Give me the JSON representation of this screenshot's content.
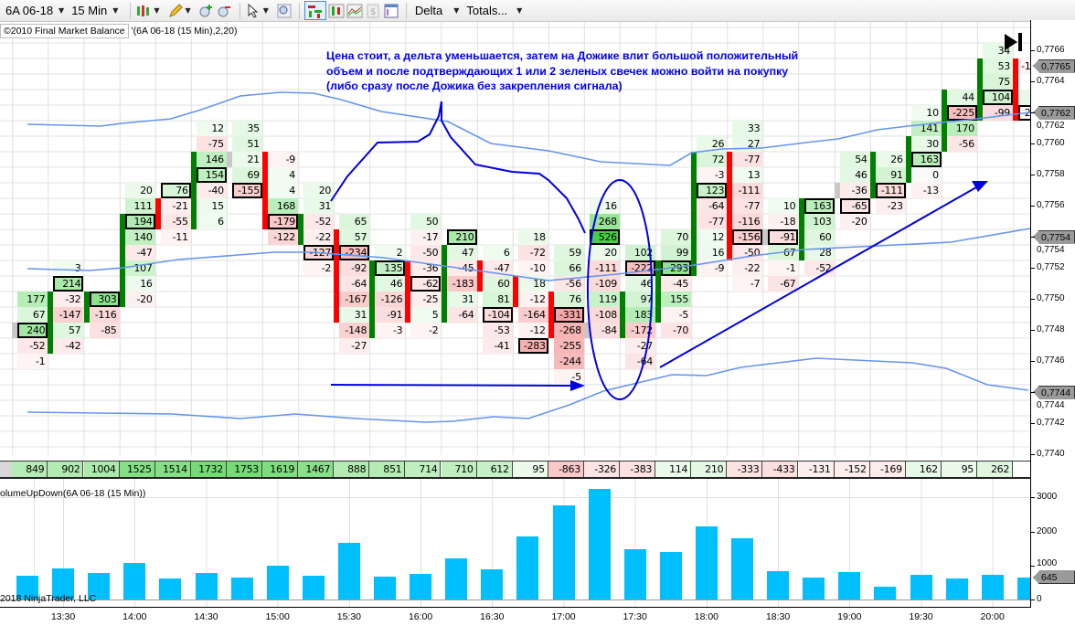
{
  "toolbar": {
    "instrument": "6A 06-18",
    "interval": "15 Min",
    "indicator_menu": "Delta",
    "totals_menu": "Totals...",
    "icons": [
      "candlestick-icon",
      "pencil-icon",
      "zoom-in-icon",
      "zoom-out-icon",
      "cursor-icon",
      "magnifier-icon",
      "footprint-style-icon",
      "bar-style-icon",
      "line-chart-icon",
      "dollar-icon",
      "properties-icon"
    ]
  },
  "indicator_title": {
    "box": "©2010 Final Market Balance",
    "args": "'(6A 06-18 (15 Min),2,20)"
  },
  "annotation": {
    "lines": [
      "Цена стоит, а дельта уменьшается, затем на Дожике влит большой положительный",
      "объем и после подтверждающих 1 или 2 зеленых свечек можно войти на покупку",
      "(либо сразу после Дожика без закрепления сигнала)"
    ],
    "color": "#0000f0"
  },
  "colors": {
    "up": "#008000",
    "down": "#ff0000",
    "doji": "#c8c8c8",
    "volume": "#00bfff",
    "bands": "#6495ed",
    "drawing": "#0000e0"
  },
  "price_axis": {
    "labels": [
      "0,7766",
      "0,7764",
      "0,7762",
      "0,7760",
      "0,7758",
      "0,7756",
      "0,7754",
      "0,7752",
      "0,7750",
      "0,7748",
      "0,7746",
      "0,7744",
      "0,7742",
      "0,7740"
    ],
    "tags": [
      "0,7765",
      "0,7762",
      "0,7754",
      "0,7744"
    ]
  },
  "chart_data": {
    "type": "footprint",
    "tick_size": 0.0001,
    "price_range": [
      0.774,
      0.7766
    ],
    "columns": [
      {
        "top": "0.7750",
        "cells": [
          177,
          67,
          240,
          -52,
          -1
        ],
        "poc": 240,
        "candle": {
          "color": "doji",
          "from": "0.7748",
          "to": "0.7748"
        }
      },
      {
        "top": "0.7752",
        "cells": [
          3,
          214,
          -32,
          -147,
          57,
          -42
        ],
        "poc": 214,
        "candle": {
          "color": "up",
          "from": "0.7750",
          "to": "0.7747"
        }
      },
      {
        "top": "0.7750",
        "cells": [
          303,
          -116,
          -85
        ],
        "poc": 303,
        "candle": {
          "color": "up",
          "from": "0.7750",
          "to": "0.7749"
        }
      },
      {
        "top": "0.7757",
        "cells": [
          20,
          111,
          194,
          140,
          -47,
          107,
          16,
          -20
        ],
        "poc": 194,
        "candle": {
          "color": "up",
          "from": "0.7755",
          "to": "0.7750"
        }
      },
      {
        "top": "0.7757",
        "cells": [
          76,
          -21,
          -55,
          -11
        ],
        "poc": 76,
        "candle": {
          "color": "down",
          "from": "0.7756",
          "to": "0.7755"
        }
      },
      {
        "top": "0.7761",
        "cells": [
          12,
          -75,
          146,
          154,
          -40,
          15,
          6
        ],
        "poc": 154,
        "candle": {
          "color": "up",
          "from": "0.7759",
          "to": "0.7755"
        }
      },
      {
        "top": "0.7761",
        "cells": [
          35,
          51,
          21,
          69,
          -155
        ],
        "poc": -155,
        "candle": {
          "color": "doji",
          "from": "0.7759",
          "to": "0.7759"
        }
      },
      {
        "top": "0.7759",
        "cells": [
          -9,
          4,
          4,
          168,
          -179,
          -122
        ],
        "poc": -179,
        "candle": {
          "color": "down",
          "from": "0.7759",
          "to": "0.7755"
        }
      },
      {
        "top": "0.7757",
        "cells": [
          20,
          31,
          -52,
          -22,
          -127,
          -2
        ],
        "poc": -127,
        "candle": {
          "color": "up",
          "from": "0.7755",
          "to": "0.7754"
        }
      },
      {
        "top": "0.7755",
        "cells": [
          65,
          57,
          -234,
          -92,
          -64,
          -167,
          31,
          -148,
          -27
        ],
        "poc": -234,
        "candle": {
          "color": "down",
          "from": "0.7754",
          "to": "0.7749"
        }
      },
      {
        "top": "0.7753",
        "cells": [
          2,
          135,
          46,
          -126,
          -91,
          -3
        ],
        "poc": 135,
        "candle": {
          "color": "up",
          "from": "0.7752",
          "to": "0.7748"
        }
      },
      {
        "top": "0.7755",
        "cells": [
          50,
          -17,
          -50,
          -36,
          -62,
          -25,
          5,
          -2
        ],
        "poc": -62,
        "candle": {
          "color": "down",
          "from": "0.7752",
          "to": "0.7749"
        }
      },
      {
        "top": "0.7754",
        "cells": [
          210,
          47,
          -45,
          -183,
          31,
          -64
        ],
        "poc": 210,
        "candle": {
          "color": "up",
          "from": "0.7753",
          "to": "0.7749"
        }
      },
      {
        "top": "0.7753",
        "cells": [
          6,
          -47,
          60,
          81,
          -104,
          -53,
          -41
        ],
        "poc": -104,
        "candle": {
          "color": "down",
          "from": "0.7752",
          "to": "0.7751"
        }
      },
      {
        "top": "0.7754",
        "cells": [
          18,
          -72,
          -10,
          18,
          -12,
          -164,
          -12,
          -283
        ],
        "poc": -283,
        "candle": {
          "color": "down",
          "from": "0.7751",
          "to": "0.7750"
        }
      },
      {
        "top": "0.7753",
        "cells": [
          59,
          66,
          -56,
          76,
          -331,
          -268,
          -255,
          -244,
          -5
        ],
        "poc": -331,
        "candle": {
          "color": "down",
          "from": "0.7750",
          "to": "0.7748"
        }
      },
      {
        "top": "0.7756",
        "cells": [
          16,
          268,
          526,
          20,
          -111,
          -109,
          119,
          -108,
          -84
        ],
        "poc": 526,
        "candle": {
          "color": "doji",
          "from": "0.7748",
          "to": "0.7748"
        }
      },
      {
        "top": "0.7753",
        "cells": [
          102,
          -222,
          46,
          97,
          183,
          -172,
          -27,
          -64
        ],
        "poc": -222,
        "candle": {
          "color": "up",
          "from": "0.7750",
          "to": "0.7748"
        }
      },
      {
        "top": "0.7754",
        "cells": [
          70,
          99,
          293,
          -45,
          155,
          -5,
          -70
        ],
        "poc": 293,
        "candle": {
          "color": "up",
          "from": "0.7752",
          "to": "0.7749"
        }
      },
      {
        "top": "0.7760",
        "cells": [
          26,
          72,
          -3,
          123,
          -64,
          -77,
          12,
          16,
          -9
        ],
        "poc": 123,
        "candle": {
          "color": "up",
          "from": "0.7759",
          "to": "0.7752"
        }
      },
      {
        "top": "0.7761",
        "cells": [
          33,
          27,
          -77,
          13,
          -111,
          -77,
          -116,
          -156,
          -50,
          -22,
          -7
        ],
        "poc": -156,
        "candle": {
          "color": "down",
          "from": "0.7759",
          "to": "0.7753"
        }
      },
      {
        "top": "0.7756",
        "cells": [
          10,
          -18,
          -91,
          67,
          -1,
          -67
        ],
        "poc": -91,
        "candle": {
          "color": "doji",
          "from": "0.7754",
          "to": "0.7754"
        }
      },
      {
        "top": "0.7756",
        "cells": [
          163,
          103,
          60,
          28,
          -52
        ],
        "poc": 163,
        "candle": {
          "color": "up",
          "from": "0.7756",
          "to": "0.7753"
        }
      },
      {
        "top": "0.7759",
        "cells": [
          54,
          46,
          -36,
          -65,
          -20
        ],
        "poc": -65,
        "candle": {
          "color": "doji",
          "from": "0.7757",
          "to": "0.7757"
        }
      },
      {
        "top": "0.7759",
        "cells": [
          26,
          91,
          -111,
          -23
        ],
        "poc": -111,
        "candle": {
          "color": "up",
          "from": "0.7759",
          "to": "0.7757"
        }
      },
      {
        "top": "0.7762",
        "cells": [
          10,
          141,
          30,
          163,
          0,
          -13
        ],
        "poc": 163,
        "candle": {
          "color": "up",
          "from": "0.7760",
          "to": "0.7758"
        }
      },
      {
        "top": "0.7763",
        "cells": [
          44,
          -225,
          170,
          -56
        ],
        "poc": -225,
        "candle": {
          "color": "up",
          "from": "0.7763",
          "to": "0.7760"
        }
      },
      {
        "top": "0.7766",
        "cells": [
          34,
          53,
          75,
          104,
          -99
        ],
        "poc": 104,
        "candle": {
          "color": "up",
          "from": "0.7765",
          "to": "0.7762"
        }
      },
      {
        "top": "0.7765",
        "cells": [
          "-1",
          "",
          "",
          "-2"
        ],
        "tones": [
          "neg",
          "",
          "pos",
          "neg"
        ],
        "poc": "-2",
        "candle": {
          "color": "down",
          "from": "0.7765",
          "to": "0.7762"
        },
        "partial": true
      }
    ],
    "delta_totals": [
      "849",
      "902",
      "1004",
      "1525",
      "1514",
      "1732",
      "1753",
      "1619",
      "1467",
      "888",
      "851",
      "714",
      "710",
      "612",
      "95",
      "-863",
      "-326",
      "-383",
      "114",
      "210",
      "-333",
      "-433",
      "-131",
      "-152",
      "-169",
      "162",
      "95",
      "262",
      "-"
    ],
    "volume": {
      "title": "olumeUpDown(6A 06-18 (15 Min))",
      "values": [
        700,
        910,
        780,
        1080,
        620,
        780,
        650,
        990,
        700,
        1670,
        670,
        750,
        1210,
        890,
        1850,
        2770,
        3250,
        1480,
        1400,
        2150,
        1800,
        830,
        650,
        810,
        380,
        730,
        620,
        730,
        645
      ],
      "ylim": [
        0,
        3000
      ],
      "axis_labels": [
        "3000",
        "2000",
        "1000",
        "0"
      ],
      "last_value_tag": "645"
    },
    "x_tick_labels": [
      "13:30",
      "14:00",
      "14:30",
      "15:00",
      "15:30",
      "16:00",
      "16:30",
      "17:00",
      "17:30",
      "18:00",
      "18:30",
      "19:00",
      "19:30",
      "20:00"
    ]
  },
  "footer": {
    "copyright": "2018 NinjaTrader, LLC"
  }
}
